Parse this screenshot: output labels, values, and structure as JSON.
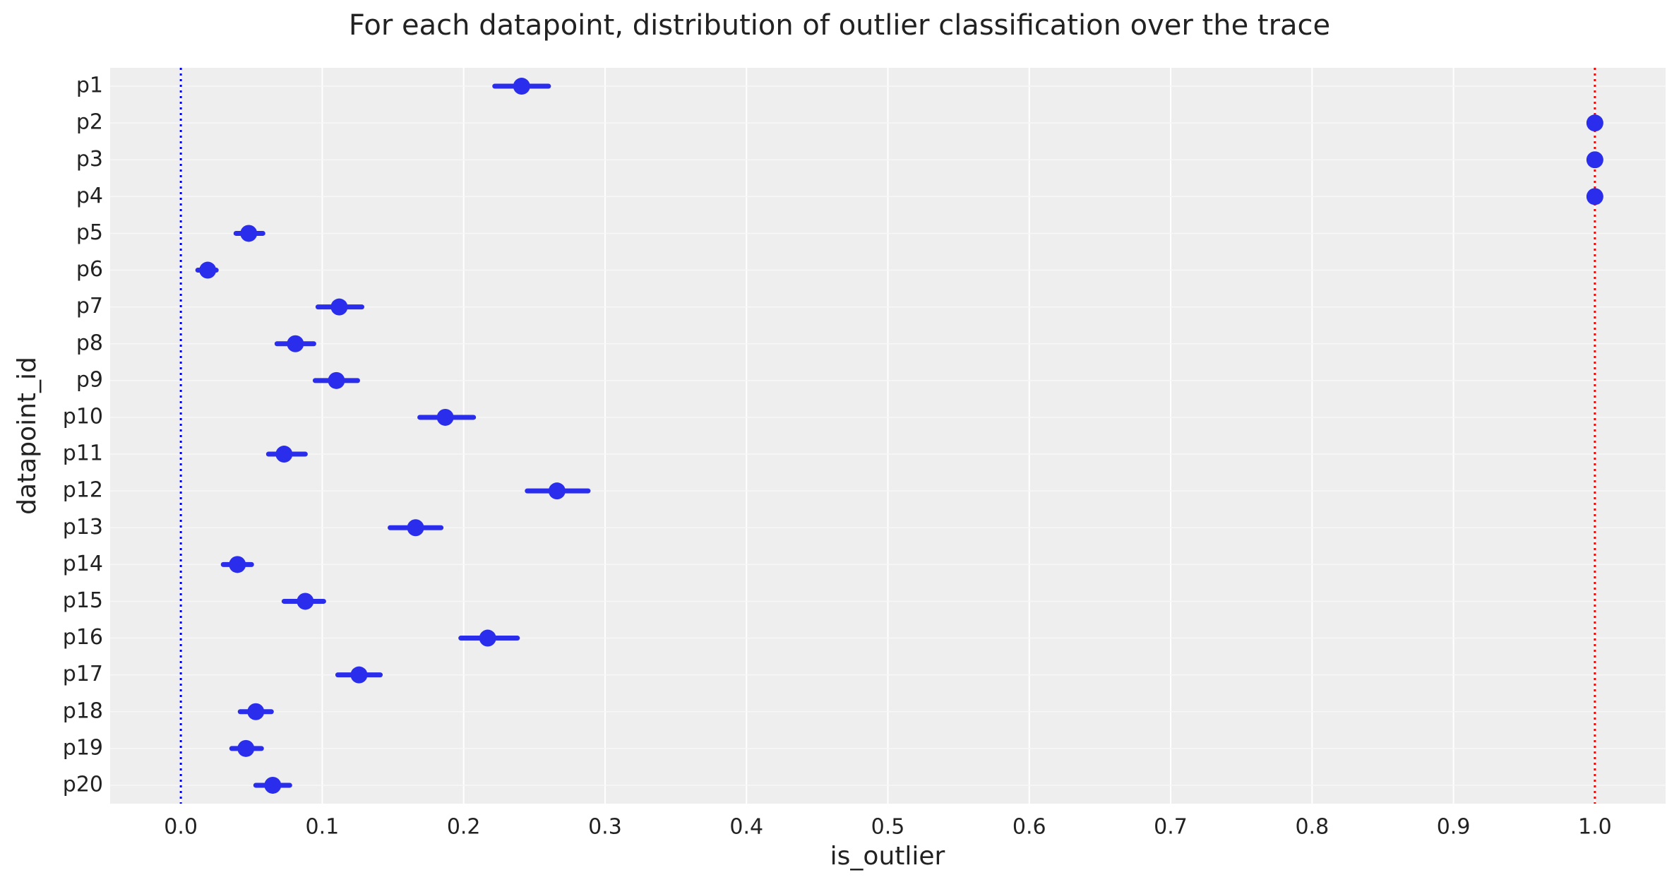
{
  "chart_data": {
    "type": "forest",
    "title": "For each datapoint, distribution of outlier classification over the trace",
    "x_label": "is_outlier",
    "y_label": "datapoint_id",
    "categories": [
      "p1",
      "p2",
      "p3",
      "p4",
      "p5",
      "p6",
      "p7",
      "p8",
      "p9",
      "p10",
      "p11",
      "p12",
      "p13",
      "p14",
      "p15",
      "p16",
      "p17",
      "p18",
      "p19",
      "p20"
    ],
    "values": [
      0.241,
      1.0,
      1.0,
      1.0,
      0.048,
      0.019,
      0.112,
      0.081,
      0.11,
      0.187,
      0.073,
      0.266,
      0.166,
      0.04,
      0.088,
      0.217,
      0.126,
      0.053,
      0.046,
      0.065
    ],
    "interval_low": [
      0.222,
      1.0,
      1.0,
      1.0,
      0.039,
      0.012,
      0.097,
      0.068,
      0.095,
      0.169,
      0.062,
      0.245,
      0.148,
      0.03,
      0.073,
      0.198,
      0.111,
      0.042,
      0.036,
      0.053
    ],
    "interval_high": [
      0.26,
      1.0,
      1.0,
      1.0,
      0.058,
      0.025,
      0.128,
      0.094,
      0.125,
      0.207,
      0.088,
      0.288,
      0.184,
      0.05,
      0.101,
      0.238,
      0.141,
      0.064,
      0.057,
      0.077
    ],
    "color": "#2a2eec",
    "xlim": [
      -0.05,
      1.05
    ],
    "xticks": [
      {
        "value": 0,
        "label": "0.0"
      },
      0.1,
      0.2,
      0.3,
      0.4,
      0.5,
      0.6,
      0.7,
      0.8,
      0.9,
      {
        "value": 1,
        "label": "1.0"
      }
    ],
    "grid": true,
    "reference_lines": [
      {
        "value": 0,
        "color": "#0000ff"
      },
      {
        "value": 1,
        "color": "#ff0000"
      }
    ]
  }
}
